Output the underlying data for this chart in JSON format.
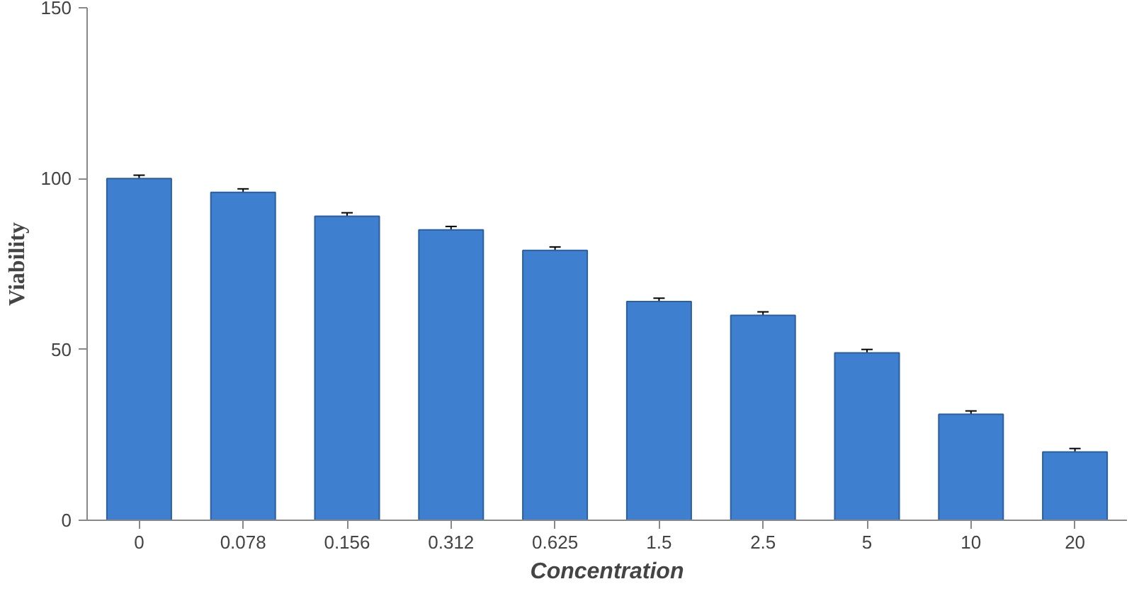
{
  "chart_data": {
    "type": "bar",
    "xlabel": "Concentration",
    "ylabel": "Viability",
    "categories": [
      "0",
      "0.078",
      "0.156",
      "0.312",
      "0.625",
      "1.5",
      "2.5",
      "5",
      "10",
      "20"
    ],
    "values": [
      100,
      96,
      89,
      85,
      79,
      64,
      60,
      49,
      31,
      20
    ],
    "errors": [
      1,
      1,
      1,
      1,
      1,
      1,
      1,
      1,
      1,
      1
    ],
    "color": "#3f7fcf",
    "ylim": [
      0,
      150
    ],
    "yticks": [
      0,
      50,
      100,
      150
    ],
    "grid": false
  }
}
